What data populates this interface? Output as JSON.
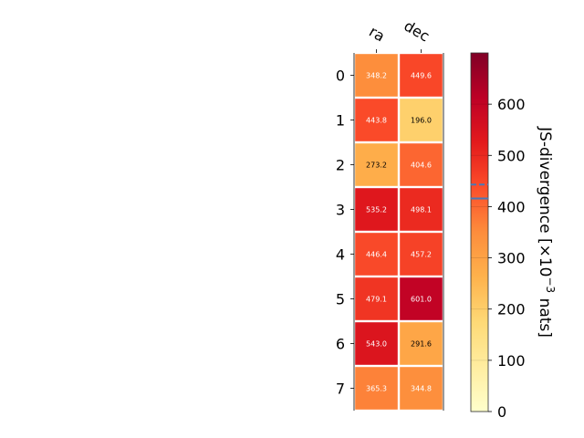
{
  "chart_data": {
    "type": "heatmap",
    "columns": [
      "ra",
      "dec"
    ],
    "rows": [
      "0",
      "1",
      "2",
      "3",
      "4",
      "5",
      "6",
      "7"
    ],
    "values": [
      [
        348.2,
        449.6
      ],
      [
        443.8,
        196.0
      ],
      [
        273.2,
        404.6
      ],
      [
        535.2,
        498.1
      ],
      [
        446.4,
        457.2
      ],
      [
        479.1,
        601.0
      ],
      [
        543.0,
        291.6
      ],
      [
        365.3,
        344.8
      ]
    ],
    "value_labels": [
      [
        "348.2",
        "449.6"
      ],
      [
        "443.8",
        "196.0"
      ],
      [
        "273.2",
        "404.6"
      ],
      [
        "535.2",
        "498.1"
      ],
      [
        "446.4",
        "457.2"
      ],
      [
        "479.1",
        "601.0"
      ],
      [
        "543.0",
        "291.6"
      ],
      [
        "365.3",
        "344.8"
      ]
    ],
    "colorbar": {
      "label_prefix": "JS-divergence [×10",
      "label_exp": "−3",
      "label_suffix": " nats]",
      "range": [
        0,
        700
      ],
      "ticks": [
        "0",
        "100",
        "200",
        "300",
        "400",
        "500",
        "600"
      ],
      "tick_values": [
        0,
        100,
        200,
        300,
        400,
        500,
        600
      ],
      "colormap": "YlOrRd",
      "marker_dashed": 443,
      "marker_solid": 416
    }
  }
}
